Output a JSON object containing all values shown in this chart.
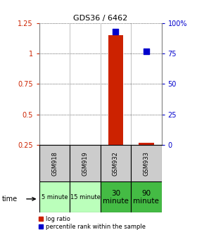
{
  "title": "GDS36 / 6462",
  "samples": [
    "GSM918",
    "GSM919",
    "GSM932",
    "GSM933"
  ],
  "time_labels": [
    "5 minute",
    "15 minute",
    "30\nminute",
    "90\nminute"
  ],
  "time_bg_light": "#bbffbb",
  "time_bg_dark": "#44bb44",
  "time_bg_colors": [
    "#bbffbb",
    "#bbffbb",
    "#44bb44",
    "#44bb44"
  ],
  "log_ratio": [
    null,
    null,
    1.15,
    0.265
  ],
  "percentile_rank": [
    null,
    null,
    93.0,
    77.0
  ],
  "ylim_left": [
    0.25,
    1.25
  ],
  "ylim_right": [
    0,
    100
  ],
  "left_ticks": [
    0.25,
    0.5,
    0.75,
    1.0,
    1.25
  ],
  "right_ticks": [
    0,
    25,
    50,
    75,
    100
  ],
  "left_tick_labels": [
    "0.25",
    "0.5",
    "0.75",
    "1",
    "1.25"
  ],
  "right_tick_labels": [
    "0",
    "25",
    "50",
    "75",
    "100%"
  ],
  "bar_color": "#cc2200",
  "dot_color": "#0000cc",
  "bar_width": 0.5,
  "dot_size": 30,
  "grid_color": "#888888",
  "background_color": "#ffffff",
  "sample_bg": "#cccccc",
  "legend_red": "log ratio",
  "legend_blue": "percentile rank within the sample",
  "title_fontsize": 8,
  "tick_fontsize": 7,
  "legend_fontsize": 6
}
